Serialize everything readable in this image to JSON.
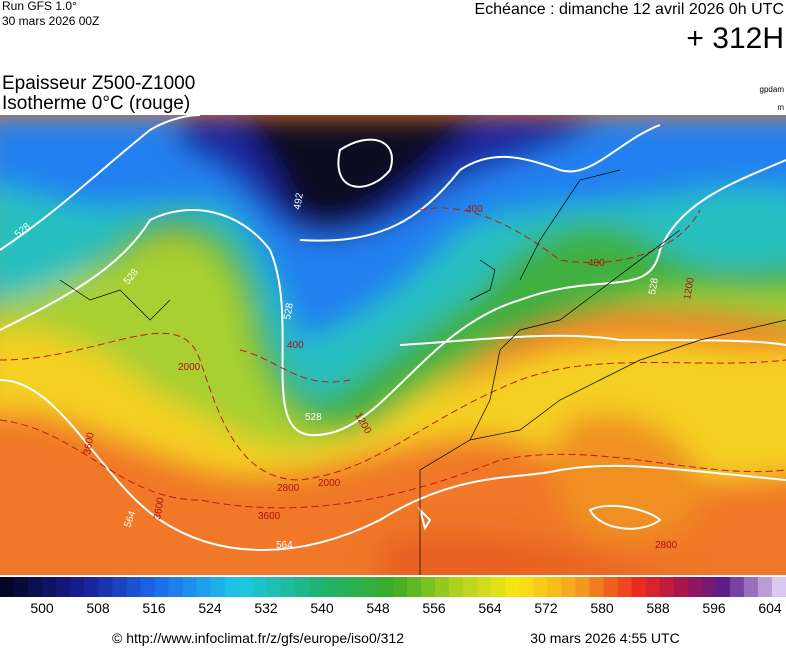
{
  "header": {
    "run": "Run GFS 1.0°",
    "run_date": "30 mars 2026 00Z",
    "echeance": "Echéance : dimanche 12 avril 2026 0h UTC",
    "lead": "+ 312H"
  },
  "title": {
    "line1": "Epaisseur Z500-Z1000",
    "line2": "Isotherme 0°C (rouge)",
    "unit1": "gpdam",
    "unit2": "m"
  },
  "map": {
    "contour_labels": [
      "492",
      "528",
      "528",
      "528",
      "528",
      "528",
      "564",
      "564",
      "400",
      "400",
      "400",
      "1200",
      "1200",
      "2000",
      "2000",
      "2800",
      "2800",
      "3600",
      "3600",
      "3600"
    ]
  },
  "colorbar": {
    "labels": [
      500,
      508,
      516,
      524,
      532,
      540,
      548,
      556,
      564,
      572,
      580,
      588,
      596,
      604
    ]
  },
  "footer": {
    "url": "© http://www.infoclimat.fr/z/gfs/europe/iso0/312",
    "date": "30 mars 2026  4:55 UTC"
  }
}
